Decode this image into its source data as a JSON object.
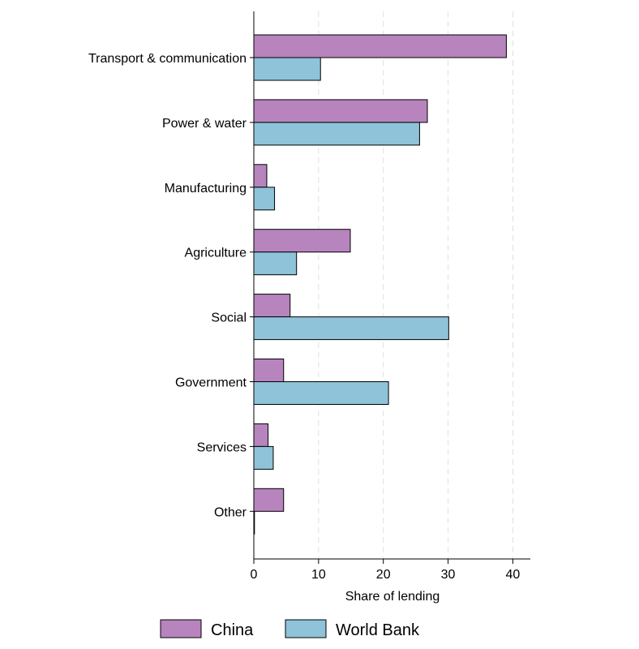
{
  "chart_data": {
    "type": "bar",
    "orientation": "horizontal",
    "categories": [
      "Transport & communication",
      "Power & water",
      "Manufacturing",
      "Agriculture",
      "Social",
      "Government",
      "Services",
      "Other"
    ],
    "series": [
      {
        "name": "China",
        "color": "#b784bd",
        "values": [
          39.0,
          26.8,
          2.0,
          14.9,
          5.6,
          4.6,
          2.2,
          4.6
        ]
      },
      {
        "name": "World Bank",
        "color": "#8ec3d9",
        "values": [
          10.3,
          25.6,
          3.2,
          6.6,
          30.1,
          20.8,
          3.0,
          0.1
        ]
      }
    ],
    "xlabel": "Share of lending",
    "xticks": [
      0,
      10,
      20,
      30,
      40
    ],
    "xlim": [
      0,
      42.5
    ],
    "grid": "vertical dashed",
    "legend_position": "bottom"
  }
}
